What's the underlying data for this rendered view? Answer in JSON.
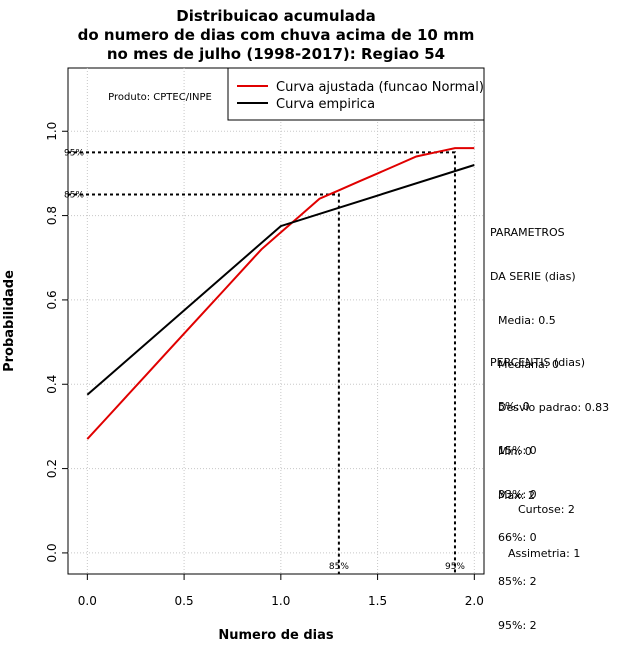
{
  "chart_data": {
    "type": "line",
    "title": [
      "Distribuicao acumulada",
      "do numero de dias com chuva acima de 10 mm",
      "no mes de julho (1998-2017): Regiao 54"
    ],
    "xlabel": "Numero de dias",
    "ylabel": "Probabilidade",
    "xlim": [
      -0.1,
      2.05
    ],
    "ylim": [
      -0.05,
      1.15
    ],
    "xticks": [
      "0.0",
      "0.5",
      "1.0",
      "1.5",
      "2.0"
    ],
    "xtick_values": [
      0,
      0.5,
      1,
      1.5,
      2
    ],
    "yticks": [
      "0.0",
      "0.2",
      "0.4",
      "0.6",
      "0.8",
      "1.0"
    ],
    "ytick_values": [
      0,
      0.2,
      0.4,
      0.6,
      0.8,
      1.0
    ],
    "grid": true,
    "legend_position": "top-right",
    "series": [
      {
        "name": "Curva ajustada (funcao Normal)",
        "color": "#e00000",
        "x": [
          0,
          0.1,
          0.2,
          0.3,
          0.4,
          0.5,
          0.6,
          0.7,
          0.8,
          0.9,
          1.0,
          1.1,
          1.2,
          1.3,
          1.4,
          1.5,
          1.6,
          1.7,
          1.8,
          1.9,
          2.0
        ],
        "y": [
          0.27,
          0.32,
          0.37,
          0.42,
          0.47,
          0.52,
          0.57,
          0.62,
          0.67,
          0.72,
          0.76,
          0.8,
          0.84,
          0.86,
          0.88,
          0.9,
          0.92,
          0.94,
          0.95,
          0.96,
          0.96
        ]
      },
      {
        "name": "Curva empirica",
        "color": "#000000",
        "x": [
          0,
          1,
          2
        ],
        "y": [
          0.375,
          0.775,
          0.92
        ]
      }
    ],
    "percentile_lines": [
      {
        "label": "85%",
        "x": 1.3,
        "y": 0.85
      },
      {
        "label": "95%",
        "x": 1.9,
        "y": 0.95
      }
    ],
    "annotation": "Produto: CPTEC/INPE"
  },
  "side_panel": {
    "params_title": [
      "PARAMETROS",
      "DA SERIE (dias)"
    ],
    "params": [
      "Media: 0.5",
      "Mediana: 0",
      "Desvio padrao: 0.83",
      "Min: 0",
      "Max: 2"
    ],
    "percentis_title": "PERCENTIS (dias)",
    "percentis": [
      "5%: 0",
      "15%: 0",
      "33%: 0",
      "66%: 0",
      "85%: 2",
      "95%: 2"
    ],
    "curtose": "Curtose: 2",
    "assimetria": "Assimetria: 1"
  }
}
